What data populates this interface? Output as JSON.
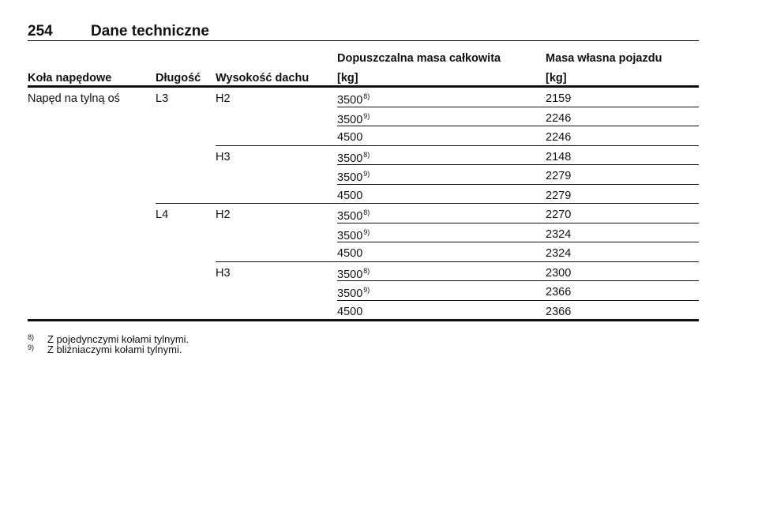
{
  "header": {
    "page_number": "254",
    "title": "Dane techniczne"
  },
  "table": {
    "headers": [
      [
        "Koła napędowe"
      ],
      [
        "Długość"
      ],
      [
        "Wysokość dachu"
      ],
      [
        "Dopuszczalna masa całkowita",
        "[kg]"
      ],
      [
        "Masa własna pojazdu",
        "[kg]"
      ]
    ],
    "rows": [
      {
        "drive": "Napęd na tylną oś",
        "length": "L3",
        "roof": "H2",
        "gvw": "3500",
        "note": "8)",
        "weight": "2159"
      },
      {
        "gvw": "3500",
        "note": "9)",
        "weight": "2246"
      },
      {
        "gvw": "4500",
        "weight": "2246"
      },
      {
        "roof": "H3",
        "gvw": "3500",
        "note": "8)",
        "weight": "2148"
      },
      {
        "gvw": "3500",
        "note": "9)",
        "weight": "2279"
      },
      {
        "gvw": "4500",
        "weight": "2279"
      },
      {
        "length": "L4",
        "roof": "H2",
        "gvw": "3500",
        "note": "8)",
        "weight": "2270"
      },
      {
        "gvw": "3500",
        "note": "9)",
        "weight": "2324"
      },
      {
        "gvw": "4500",
        "weight": "2324"
      },
      {
        "roof": "H3",
        "gvw": "3500",
        "note": "8)",
        "weight": "2300"
      },
      {
        "gvw": "3500",
        "note": "9)",
        "weight": "2366"
      },
      {
        "gvw": "4500",
        "weight": "2366"
      }
    ]
  },
  "footnotes": [
    {
      "marker": "8)",
      "text": "Z pojedynczymi kołami tylnymi."
    },
    {
      "marker": "9)",
      "text": "Z bliźniaczymi kołami tylnymi."
    }
  ]
}
